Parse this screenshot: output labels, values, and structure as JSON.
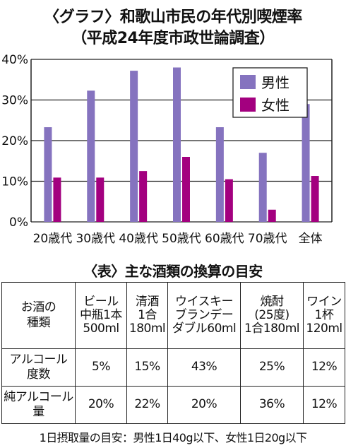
{
  "title_line1": "〈グラフ〉和歌山市民の年代別喫煙率",
  "title_line2": "（平成24年度市政世論調査）",
  "chart_data": {
    "type": "bar",
    "categories": [
      "20歳代",
      "30歳代",
      "40歳代",
      "50歳代",
      "60歳代",
      "70歳代",
      "全体"
    ],
    "series": [
      {
        "name": "男性",
        "color": "#8573bf",
        "values": [
          23.3,
          32.3,
          37.2,
          38.0,
          23.3,
          17.0,
          29.0
        ]
      },
      {
        "name": "女性",
        "color": "#a3007f",
        "values": [
          10.9,
          10.9,
          12.5,
          16.0,
          10.5,
          3.0,
          11.3
        ]
      }
    ],
    "ylim": [
      0,
      40
    ],
    "yticks": [
      "0%",
      "10%",
      "20%",
      "30%",
      "40%"
    ],
    "grid": true,
    "legend": "top-right"
  },
  "table": {
    "title": "〈表〉主な酒類の換算の目安",
    "corner": [
      "お酒の",
      "種類"
    ],
    "columns": [
      [
        "ビール",
        "中瓶1本",
        "500ml"
      ],
      [
        "清酒",
        "1合",
        "180ml"
      ],
      [
        "ウイスキー",
        "ブランデー",
        "ダブル60ml"
      ],
      [
        "焼酎",
        "(25度)",
        "1合180ml"
      ],
      [
        "ワイン",
        "1杯",
        "120ml"
      ]
    ],
    "rows": [
      {
        "label": [
          "アルコール",
          "度数"
        ],
        "values": [
          "5%",
          "15%",
          "43%",
          "25%",
          "12%"
        ]
      },
      {
        "label": [
          "純アルコール",
          "量"
        ],
        "values": [
          "20%",
          "22%",
          "20%",
          "36%",
          "12%"
        ]
      }
    ]
  },
  "note": "1日摂取量の目安：男性1日40g以下、女性1日20g以下"
}
